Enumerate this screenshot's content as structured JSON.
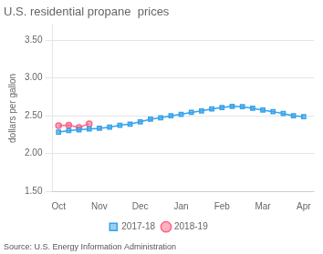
{
  "chart_data": {
    "type": "line",
    "title": "U.S. residential propane  prices",
    "y_label": "dollars per gallon",
    "annotation": "Source: U.S. Energy Information Administration",
    "xlim": [
      -0.3,
      12.5
    ],
    "xticks": [
      {
        "value": 0,
        "label": "Oct"
      },
      {
        "value": 2,
        "label": "Nov"
      },
      {
        "value": 4,
        "label": "Dec"
      },
      {
        "value": 6,
        "label": "Jan"
      },
      {
        "value": 8,
        "label": "Feb"
      },
      {
        "value": 10,
        "label": "Mar"
      },
      {
        "value": 12,
        "label": "Apr"
      }
    ],
    "ylim": [
      1.5,
      3.7
    ],
    "yticks": [
      {
        "value": 1.5,
        "label": "1.50"
      },
      {
        "value": 2.0,
        "label": "2.00"
      },
      {
        "value": 2.5,
        "label": "2.50"
      },
      {
        "value": 3.0,
        "label": "3.00"
      },
      {
        "value": 3.5,
        "label": "3.50"
      }
    ],
    "grid": "y",
    "legend": "bottom",
    "series": [
      {
        "name": "2017-18",
        "marker": "square",
        "x": [
          0,
          0.5,
          1,
          1.5,
          2,
          2.5,
          3,
          3.5,
          4,
          4.5,
          5,
          5.5,
          6,
          6.5,
          7,
          7.5,
          8,
          8.5,
          9,
          9.5,
          10,
          10.5,
          11,
          11.5,
          12
        ],
        "values": [
          2.285,
          2.305,
          2.315,
          2.325,
          2.335,
          2.35,
          2.375,
          2.39,
          2.42,
          2.455,
          2.475,
          2.5,
          2.52,
          2.545,
          2.565,
          2.59,
          2.61,
          2.625,
          2.62,
          2.6,
          2.575,
          2.555,
          2.53,
          2.5,
          2.49
        ]
      },
      {
        "name": "2018-19",
        "marker": "circle",
        "x": [
          0,
          0.5,
          1,
          1.5
        ],
        "values": [
          2.37,
          2.375,
          2.345,
          2.395
        ]
      }
    ]
  }
}
